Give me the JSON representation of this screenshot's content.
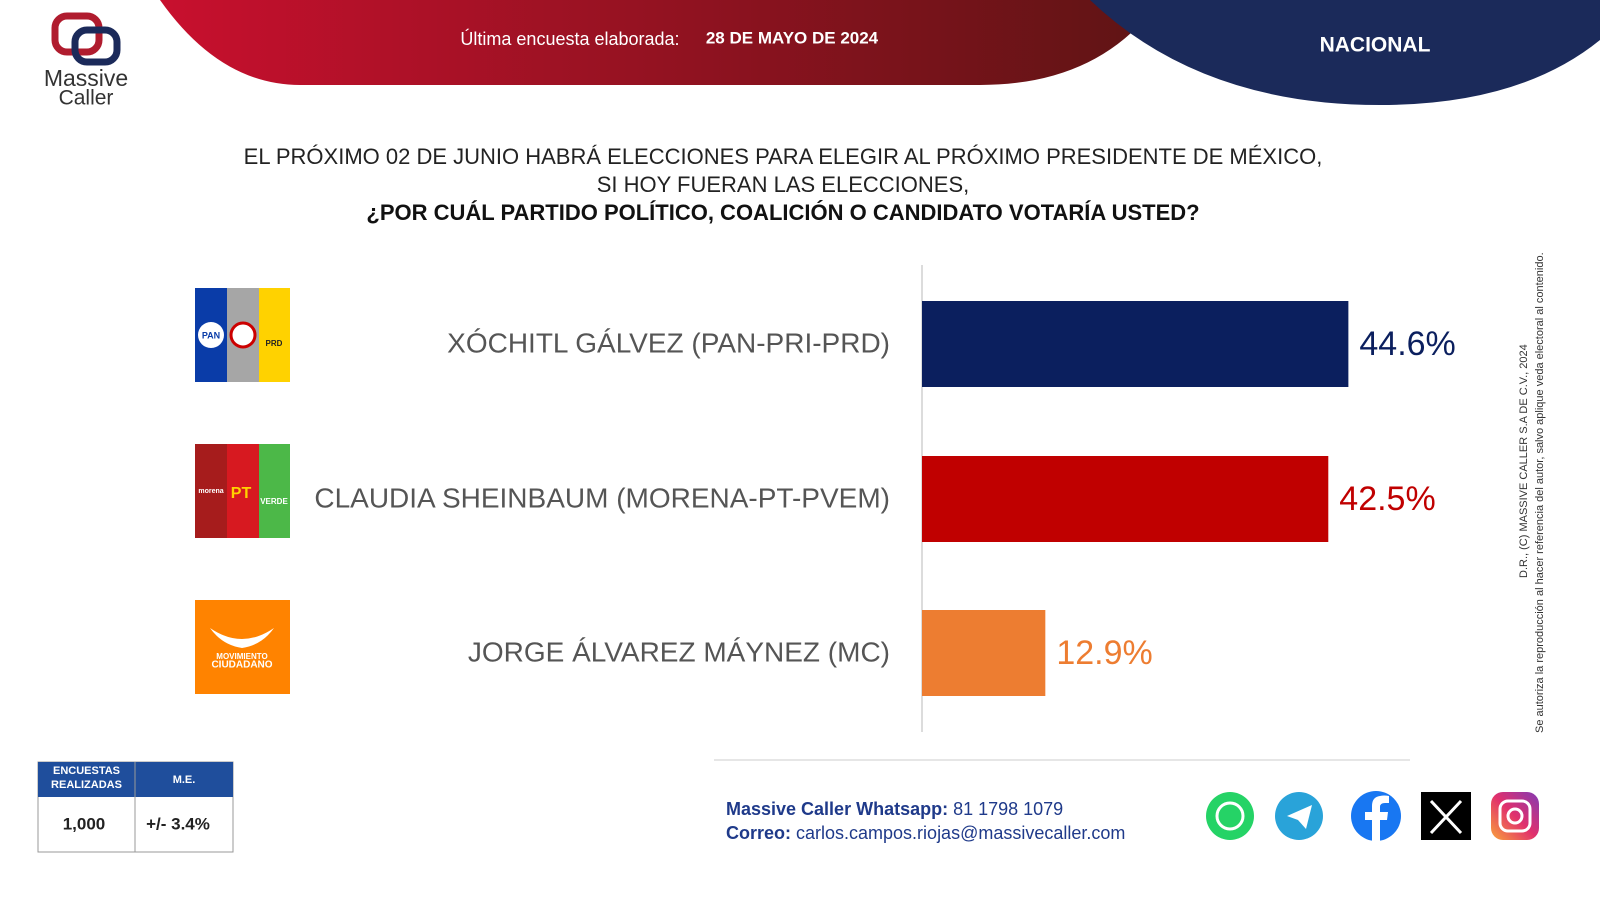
{
  "brand": {
    "name_top": "Massive",
    "name_bottom": "Caller"
  },
  "header": {
    "survey_label": "Última encuesta elaborada:",
    "survey_date": "28 DE MAYO DE 2024",
    "scope": "NACIONAL"
  },
  "question": {
    "line1": "EL PRÓXIMO 02 DE JUNIO HABRÁ ELECCIONES PARA ELEGIR AL PRÓXIMO PRESIDENTE DE MÉXICO,",
    "line2": "SI HOY FUERAN LAS ELECCIONES,",
    "line3": "¿POR CUÁL PARTIDO POLÍTICO, COALICIÓN O CANDIDATO VOTARÍA USTED?"
  },
  "logos": {
    "pan": "PAN",
    "prd": "PRD",
    "morena": "morena",
    "pt": "PT",
    "verde": "VERDE",
    "mc1": "MOVIMIENTO",
    "mc2": "CIUDADANO"
  },
  "chart_data": {
    "type": "hbar",
    "categories": [
      "XÓCHITL GÁLVEZ (PAN-PRI-PRD)",
      "CLAUDIA SHEINBAUM (MORENA-PT-PVEM)",
      "JORGE ÁLVAREZ MÁYNEZ (MC)"
    ],
    "values": [
      44.6,
      42.5,
      12.9
    ],
    "value_labels": [
      "44.6%",
      "42.5%",
      "12.9%"
    ],
    "colors": [
      "#0b1f5e",
      "#c00000",
      "#ed7d31"
    ],
    "xlim": [
      0,
      50
    ]
  },
  "sample_table": {
    "headers": [
      "ENCUESTAS REALIZADAS",
      "M.E."
    ],
    "values": [
      "1,000",
      "+/- 3.4%"
    ]
  },
  "contact": {
    "whatsapp_label": "Massive Caller Whatsapp:",
    "whatsapp": "81 1798 1079",
    "email_label": "Correo:",
    "email": "carlos.campos.riojas@massivecaller.com"
  },
  "copyright": {
    "line1": "D.R., (C) MASSIVE CALLER S.A DE C.V., 2024",
    "line2": "Se autoriza la reproducción al hacer referencia del autor, salvo aplique veda electoral al contenido."
  }
}
